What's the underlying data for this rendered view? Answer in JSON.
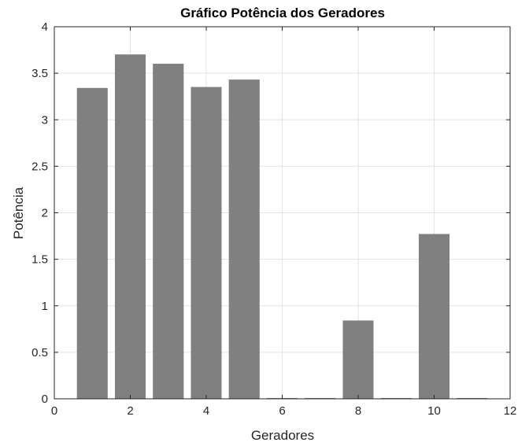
{
  "chart_data": {
    "type": "bar",
    "title": "Gráfico Potência dos Geradores",
    "xlabel": "Geradores",
    "ylabel": "Potência",
    "x": [
      1,
      2,
      3,
      4,
      5,
      6,
      7,
      8,
      9,
      10,
      11
    ],
    "values": [
      3.34,
      3.7,
      3.6,
      3.35,
      3.43,
      0,
      0,
      0.84,
      0,
      1.77,
      0
    ],
    "xlim": [
      0,
      12
    ],
    "ylim": [
      0,
      4
    ],
    "xticks": [
      0,
      2,
      4,
      6,
      8,
      10,
      12
    ],
    "yticks": [
      0,
      0.5,
      1,
      1.5,
      2,
      2.5,
      3,
      3.5,
      4
    ],
    "xtick_labels": [
      "0",
      "2",
      "4",
      "6",
      "8",
      "10",
      "12"
    ],
    "ytick_labels": [
      "0",
      "0.5",
      "1",
      "1.5",
      "2",
      "2.5",
      "3",
      "3.5",
      "4"
    ],
    "grid": true,
    "bar_color": "#808080"
  }
}
